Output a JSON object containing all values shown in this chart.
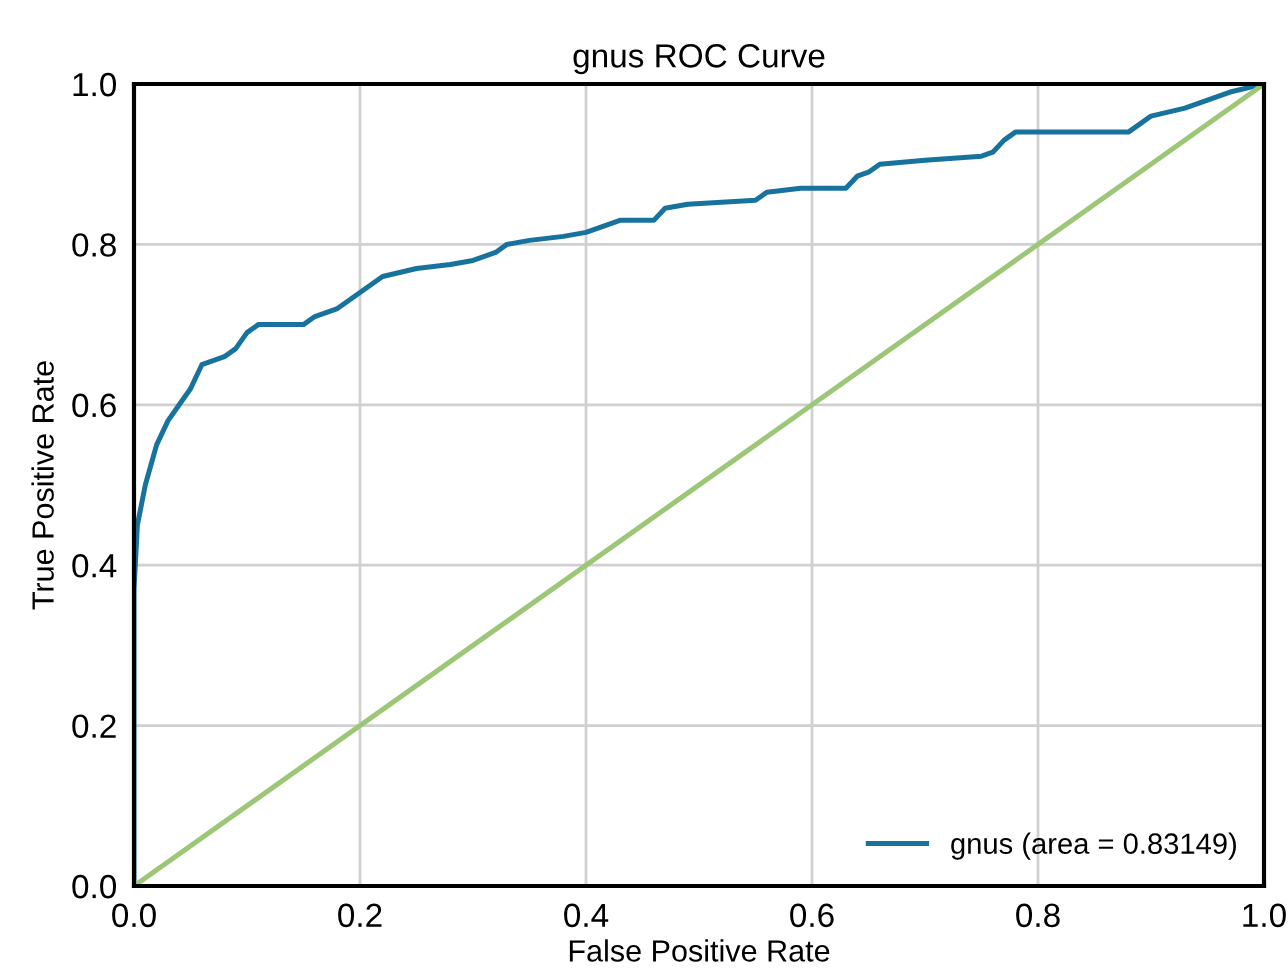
{
  "chart_data": {
    "type": "line",
    "title": "gnus ROC Curve",
    "xlabel": "False Positive Rate",
    "ylabel": "True Positive Rate",
    "xlim": [
      0,
      1
    ],
    "ylim": [
      0,
      1
    ],
    "xticks": [
      "0.0",
      0.2,
      0.4,
      0.6,
      0.8,
      "1.0"
    ],
    "yticks": [
      "0.0",
      0.2,
      0.4,
      0.6,
      0.8,
      "1.0"
    ],
    "grid": true,
    "legend": "bottom right",
    "series": [
      {
        "name": "gnus (area = 0.83149)",
        "color": "#17739e",
        "x": [
          0,
          0,
          0.003,
          0.01,
          0.02,
          0.03,
          0.04,
          0.05,
          0.06,
          0.08,
          0.09,
          0.1,
          0.11,
          0.15,
          0.16,
          0.18,
          0.2,
          0.22,
          0.25,
          0.28,
          0.3,
          0.32,
          0.33,
          0.35,
          0.38,
          0.4,
          0.41,
          0.43,
          0.46,
          0.47,
          0.49,
          0.55,
          0.56,
          0.59,
          0.63,
          0.64,
          0.65,
          0.66,
          0.7,
          0.75,
          0.76,
          0.77,
          0.78,
          0.88,
          0.89,
          0.9,
          0.93,
          0.95,
          0.97,
          1.0
        ],
        "values": [
          0,
          0.37,
          0.45,
          0.5,
          0.55,
          0.58,
          0.6,
          0.62,
          0.65,
          0.66,
          0.67,
          0.69,
          0.7,
          0.7,
          0.71,
          0.72,
          0.74,
          0.76,
          0.77,
          0.775,
          0.78,
          0.79,
          0.8,
          0.805,
          0.81,
          0.815,
          0.82,
          0.83,
          0.83,
          0.845,
          0.85,
          0.855,
          0.865,
          0.87,
          0.87,
          0.885,
          0.89,
          0.9,
          0.905,
          0.91,
          0.915,
          0.93,
          0.94,
          0.94,
          0.95,
          0.96,
          0.97,
          0.98,
          0.99,
          1.0
        ]
      },
      {
        "color": "#9cc776",
        "x": [
          0,
          1
        ],
        "values": [
          0,
          1
        ]
      }
    ]
  }
}
